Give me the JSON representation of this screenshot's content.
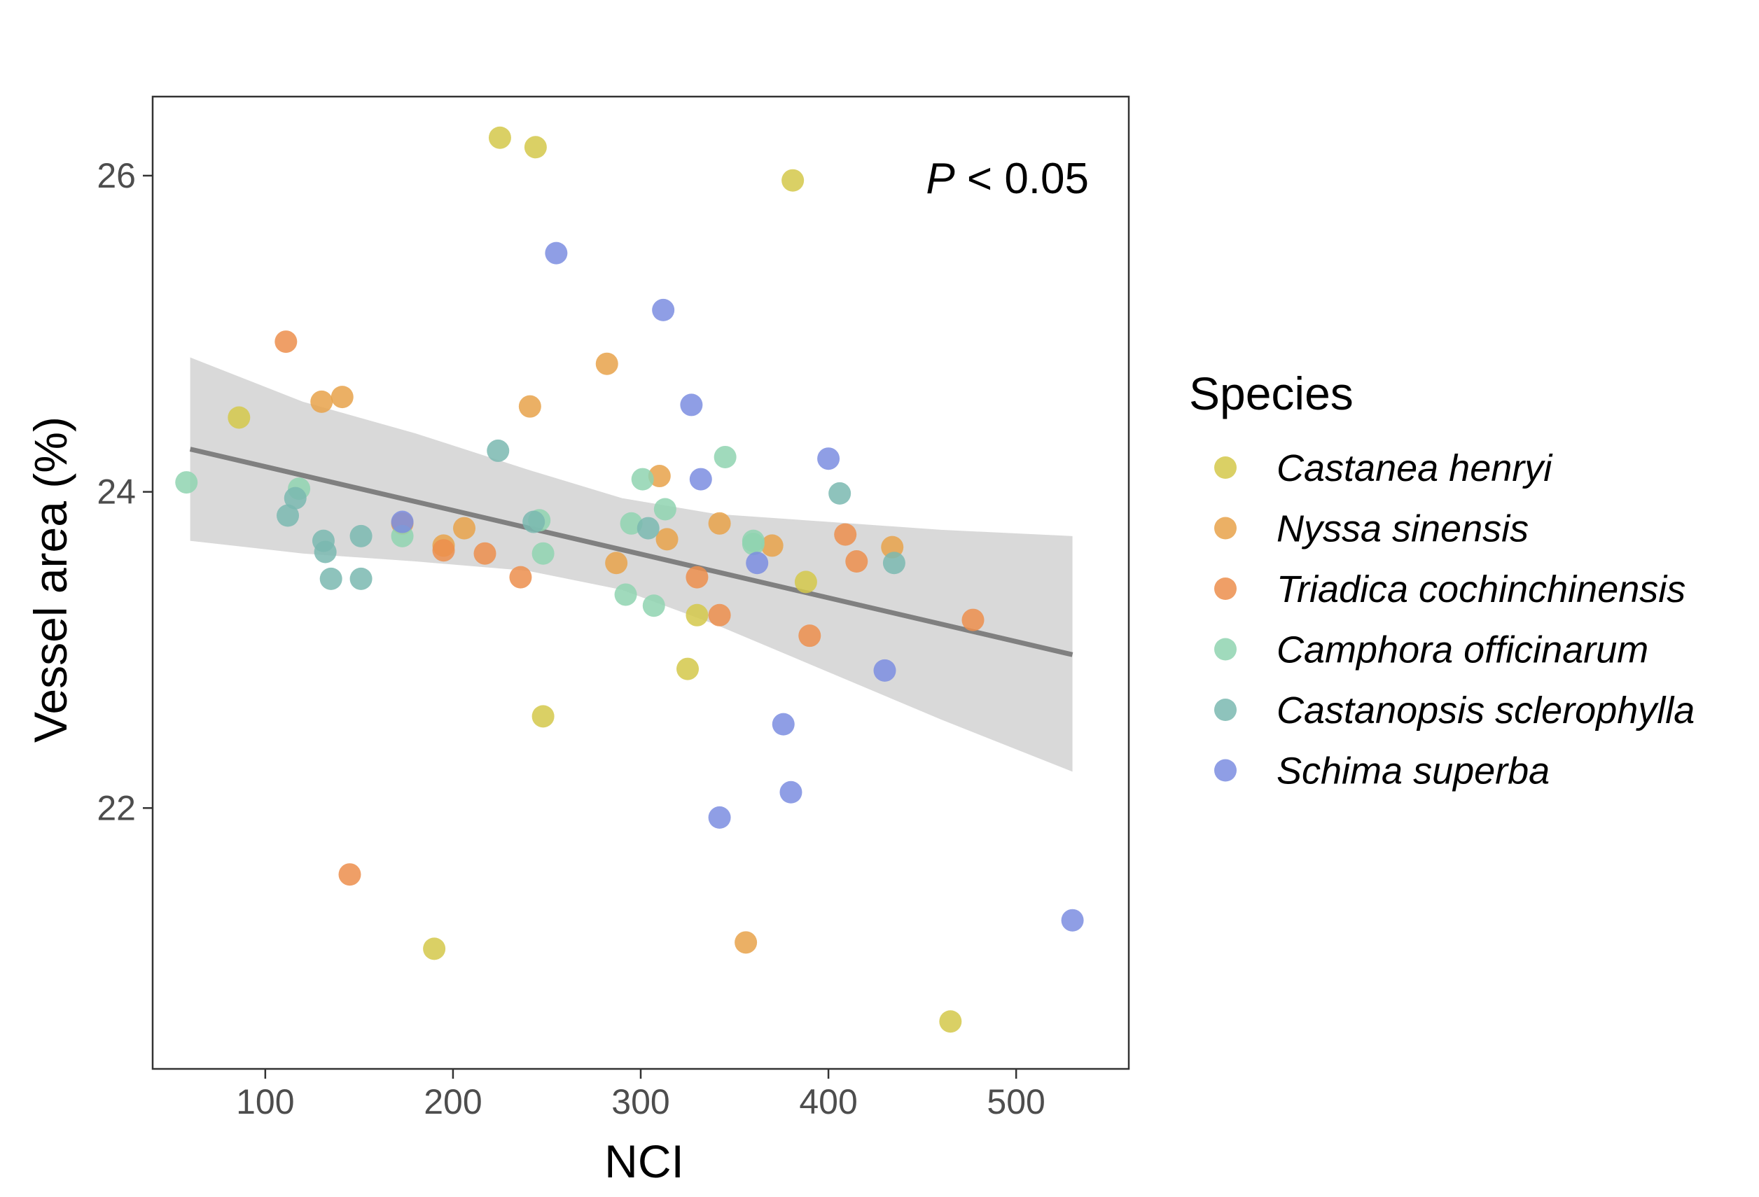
{
  "chart_data": {
    "type": "scatter",
    "title": "",
    "xlabel": "NCI",
    "ylabel": "Vessel area (%)",
    "xlim": [
      40,
      560
    ],
    "ylim": [
      20.35,
      26.5
    ],
    "xticks": [
      100,
      200,
      300,
      400,
      500
    ],
    "yticks": [
      22,
      24,
      26
    ],
    "grid": false,
    "annotation": {
      "prefix": "P",
      "text": " < 0.05"
    },
    "legend": {
      "title": "Species",
      "placement": "right"
    },
    "series": [
      {
        "name": "Castanea henryi",
        "color": "#d4c84a",
        "points": [
          [
            86,
            24.47
          ],
          [
            225,
            26.24
          ],
          [
            244,
            26.18
          ],
          [
            381,
            25.97
          ],
          [
            330,
            23.22
          ],
          [
            325,
            22.88
          ],
          [
            248,
            22.58
          ],
          [
            190,
            21.11
          ],
          [
            465,
            20.65
          ],
          [
            388,
            23.43
          ]
        ]
      },
      {
        "name": "Nyssa sinensis",
        "color": "#e8a24a",
        "points": [
          [
            130,
            24.57
          ],
          [
            141,
            24.6
          ],
          [
            241,
            24.54
          ],
          [
            282,
            24.81
          ],
          [
            310,
            24.1
          ],
          [
            342,
            23.8
          ],
          [
            370,
            23.66
          ],
          [
            314,
            23.7
          ],
          [
            287,
            23.55
          ],
          [
            434,
            23.65
          ],
          [
            206,
            23.77
          ],
          [
            195,
            23.66
          ],
          [
            173,
            23.8
          ],
          [
            356,
            21.15
          ]
        ]
      },
      {
        "name": "Triadica cochinchinensis",
        "color": "#ec8e4c",
        "points": [
          [
            111,
            24.95
          ],
          [
            145,
            21.58
          ],
          [
            195,
            23.63
          ],
          [
            217,
            23.61
          ],
          [
            236,
            23.46
          ],
          [
            330,
            23.46
          ],
          [
            342,
            23.22
          ],
          [
            390,
            23.09
          ],
          [
            409,
            23.73
          ],
          [
            415,
            23.56
          ],
          [
            477,
            23.19
          ]
        ]
      },
      {
        "name": "Camphora officinarum",
        "color": "#8fd4b0",
        "points": [
          [
            58,
            24.06
          ],
          [
            118,
            24.02
          ],
          [
            173,
            23.72
          ],
          [
            246,
            23.82
          ],
          [
            248,
            23.61
          ],
          [
            295,
            23.8
          ],
          [
            301,
            24.08
          ],
          [
            313,
            23.89
          ],
          [
            292,
            23.35
          ],
          [
            307,
            23.28
          ],
          [
            345,
            24.22
          ],
          [
            360,
            23.69
          ],
          [
            360,
            23.67
          ]
        ]
      },
      {
        "name": "Castanopsis sclerophylla",
        "color": "#7ab8b0",
        "points": [
          [
            112,
            23.85
          ],
          [
            116,
            23.96
          ],
          [
            131,
            23.69
          ],
          [
            132,
            23.62
          ],
          [
            135,
            23.45
          ],
          [
            151,
            23.72
          ],
          [
            151,
            23.45
          ],
          [
            224,
            24.26
          ],
          [
            243,
            23.81
          ],
          [
            304,
            23.77
          ],
          [
            406,
            23.99
          ],
          [
            435,
            23.55
          ]
        ]
      },
      {
        "name": "Schima superba",
        "color": "#7b8de0",
        "points": [
          [
            173,
            23.81
          ],
          [
            255,
            25.51
          ],
          [
            312,
            25.15
          ],
          [
            327,
            24.55
          ],
          [
            332,
            24.08
          ],
          [
            362,
            23.55
          ],
          [
            400,
            24.21
          ],
          [
            376,
            22.53
          ],
          [
            380,
            22.1
          ],
          [
            342,
            21.94
          ],
          [
            430,
            22.87
          ],
          [
            530,
            21.29
          ]
        ]
      }
    ],
    "trend_line": {
      "color": "#808080",
      "x": [
        60,
        530
      ],
      "y": [
        24.27,
        22.97
      ]
    },
    "confidence_band": {
      "color": "#d9d9d9",
      "upper": [
        [
          60,
          24.85
        ],
        [
          120,
          24.57
        ],
        [
          180,
          24.37
        ],
        [
          240,
          24.14
        ],
        [
          290,
          23.96
        ],
        [
          340,
          23.86
        ],
        [
          400,
          23.81
        ],
        [
          460,
          23.76
        ],
        [
          530,
          23.72
        ]
      ],
      "lower": [
        [
          60,
          23.69
        ],
        [
          120,
          23.61
        ],
        [
          180,
          23.56
        ],
        [
          240,
          23.5
        ],
        [
          290,
          23.38
        ],
        [
          340,
          23.16
        ],
        [
          400,
          22.86
        ],
        [
          460,
          22.56
        ],
        [
          530,
          22.23
        ]
      ]
    }
  }
}
